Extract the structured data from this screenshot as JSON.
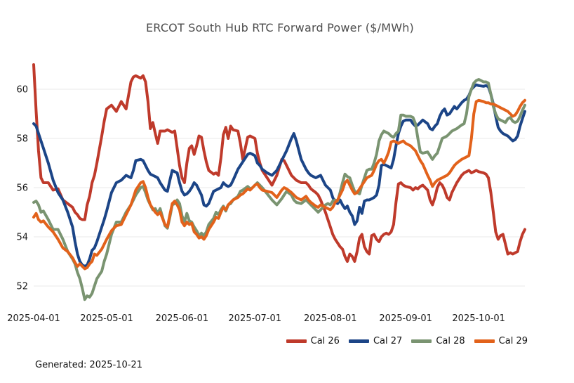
{
  "footer": {
    "generated": "Generated: 2025-10-21"
  },
  "chart_data": {
    "type": "line",
    "title": "ERCOT South Hub RTC Forward Power ($/MWh)",
    "xlabel": "",
    "ylabel": "",
    "grid": true,
    "legend_position": "bottom-right",
    "axis_text_color": "#1a1a1a",
    "grid_color": "#e8e8e8",
    "x_unit": "days since 2025-04-01",
    "xlim_days": [
      0,
      202
    ],
    "ylim": [
      51.2,
      61.3
    ],
    "y_ticks": [
      52,
      54,
      56,
      58,
      60
    ],
    "x_ticks": [
      {
        "day": 0,
        "label": "2025-04-01"
      },
      {
        "day": 30,
        "label": "2025-05-01"
      },
      {
        "day": 61,
        "label": "2025-06-01"
      },
      {
        "day": 91,
        "label": "2025-07-01"
      },
      {
        "day": 122,
        "label": "2025-08-01"
      },
      {
        "day": 153,
        "label": "2025-09-01"
      },
      {
        "day": 183,
        "label": "2025-10-01"
      }
    ],
    "x_days": [
      0,
      1,
      2,
      3,
      4,
      6,
      8,
      10,
      12,
      14,
      16,
      17,
      18,
      19,
      20,
      21,
      22,
      23,
      24,
      25,
      26,
      28,
      29,
      30,
      32,
      34,
      36,
      38,
      40,
      41,
      42,
      44,
      45,
      46,
      47,
      48,
      49,
      50,
      51,
      52,
      54,
      55,
      56,
      57,
      58,
      59,
      60,
      61,
      62,
      63,
      64,
      65,
      66,
      67,
      68,
      69,
      70,
      71,
      72,
      74,
      75,
      76,
      77,
      78,
      79,
      80,
      81,
      82,
      84,
      85,
      86,
      88,
      89,
      90,
      91,
      92,
      93,
      94,
      96,
      98,
      100,
      102,
      103,
      104,
      106,
      107,
      108,
      110,
      112,
      113,
      114,
      116,
      117,
      118,
      120,
      121,
      122,
      123,
      124,
      125,
      126,
      127,
      128,
      129,
      130,
      131,
      132,
      133,
      134,
      135,
      136,
      137,
      138,
      139,
      140,
      141,
      142,
      143,
      144,
      145,
      146,
      147,
      148,
      149,
      150,
      151,
      152,
      153,
      155,
      156,
      157,
      158,
      159,
      160,
      162,
      163,
      164,
      165,
      166,
      167,
      168,
      169,
      170,
      171,
      172,
      173,
      174,
      176,
      177,
      178,
      179,
      180,
      181,
      182,
      183,
      185,
      186,
      187,
      188,
      189,
      190,
      191,
      192,
      193,
      194,
      195,
      196,
      197,
      198,
      199,
      200,
      201,
      202
    ],
    "series": [
      {
        "name": "Cal 26",
        "color": "#bf3a2b",
        "values": [
          61.0,
          59.1,
          57.5,
          56.4,
          56.2,
          56.2,
          55.9,
          55.95,
          55.5,
          55.35,
          55.2,
          55.0,
          54.9,
          54.75,
          54.7,
          54.7,
          55.3,
          55.65,
          56.2,
          56.5,
          57.0,
          58.1,
          58.7,
          59.2,
          59.35,
          59.1,
          59.5,
          59.2,
          60.3,
          60.5,
          60.55,
          60.45,
          60.55,
          60.3,
          59.5,
          58.4,
          58.65,
          58.2,
          57.8,
          58.3,
          58.3,
          58.35,
          58.3,
          58.25,
          58.3,
          57.6,
          56.9,
          56.4,
          56.2,
          57.0,
          57.6,
          57.7,
          57.35,
          57.7,
          58.1,
          58.05,
          57.5,
          57.05,
          56.7,
          56.55,
          56.6,
          56.5,
          57.2,
          58.15,
          58.45,
          58.0,
          58.5,
          58.35,
          58.3,
          57.8,
          57.15,
          58.05,
          58.1,
          58.05,
          58.0,
          57.4,
          57.0,
          56.7,
          56.4,
          56.1,
          56.5,
          57.15,
          57.1,
          56.9,
          56.5,
          56.4,
          56.3,
          56.2,
          56.2,
          56.1,
          55.95,
          55.8,
          55.7,
          55.5,
          55.0,
          54.7,
          54.4,
          54.1,
          53.9,
          53.75,
          53.6,
          53.5,
          53.2,
          53.0,
          53.3,
          53.2,
          53.0,
          53.4,
          53.95,
          54.1,
          53.6,
          53.4,
          53.3,
          54.05,
          54.1,
          53.9,
          53.8,
          54.0,
          54.1,
          54.15,
          54.1,
          54.2,
          54.5,
          55.4,
          56.15,
          56.2,
          56.1,
          56.05,
          56.0,
          55.9,
          56.0,
          55.95,
          56.05,
          56.1,
          55.9,
          55.5,
          55.3,
          55.6,
          56.0,
          56.2,
          56.1,
          55.9,
          55.6,
          55.5,
          55.8,
          56.0,
          56.2,
          56.5,
          56.6,
          56.65,
          56.7,
          56.6,
          56.65,
          56.7,
          56.65,
          56.6,
          56.55,
          56.4,
          55.8,
          55.0,
          54.2,
          53.9,
          54.05,
          54.1,
          53.7,
          53.3,
          53.35,
          53.3,
          53.35,
          53.4,
          53.8,
          54.1,
          54.3
        ]
      },
      {
        "name": "Cal 27",
        "color": "#1c4587",
        "values": [
          58.6,
          58.5,
          58.2,
          57.9,
          57.6,
          57.0,
          56.3,
          55.8,
          55.5,
          55.0,
          54.4,
          53.8,
          53.3,
          53.0,
          52.85,
          52.8,
          52.85,
          53.1,
          53.45,
          53.55,
          53.8,
          54.4,
          54.7,
          55.05,
          55.8,
          56.2,
          56.3,
          56.5,
          56.4,
          56.7,
          57.1,
          57.15,
          57.1,
          56.9,
          56.7,
          56.55,
          56.5,
          56.45,
          56.4,
          56.2,
          55.9,
          55.85,
          56.3,
          56.7,
          56.65,
          56.6,
          56.2,
          55.85,
          55.7,
          55.75,
          55.85,
          56.0,
          56.2,
          56.1,
          55.9,
          55.7,
          55.3,
          55.25,
          55.35,
          55.85,
          55.9,
          55.95,
          56.0,
          56.2,
          56.1,
          56.05,
          56.1,
          56.3,
          56.75,
          56.9,
          57.05,
          57.35,
          57.4,
          57.35,
          57.3,
          57.0,
          56.9,
          56.75,
          56.6,
          56.5,
          56.7,
          57.1,
          57.3,
          57.5,
          58.0,
          58.2,
          57.9,
          57.15,
          56.75,
          56.6,
          56.5,
          56.4,
          56.45,
          56.5,
          56.1,
          56.0,
          55.9,
          55.6,
          55.4,
          55.35,
          55.5,
          55.3,
          55.15,
          55.25,
          55.0,
          54.85,
          54.5,
          54.65,
          55.2,
          54.95,
          55.45,
          55.5,
          55.5,
          55.55,
          55.6,
          55.7,
          56.1,
          56.9,
          56.95,
          56.9,
          56.85,
          56.8,
          57.15,
          57.7,
          58.2,
          58.5,
          58.7,
          58.75,
          58.75,
          58.6,
          58.5,
          58.55,
          58.65,
          58.75,
          58.6,
          58.4,
          58.35,
          58.5,
          58.6,
          58.9,
          59.1,
          59.2,
          58.95,
          59.0,
          59.15,
          59.3,
          59.2,
          59.45,
          59.55,
          59.6,
          59.75,
          60.0,
          60.1,
          60.18,
          60.15,
          60.12,
          60.15,
          60.1,
          59.8,
          59.4,
          58.9,
          58.45,
          58.3,
          58.2,
          58.15,
          58.1,
          58.0,
          57.9,
          57.95,
          58.1,
          58.5,
          58.8,
          59.1
        ]
      },
      {
        "name": "Cal 28",
        "color": "#7a9471",
        "values": [
          55.4,
          55.45,
          55.3,
          55.0,
          55.05,
          54.7,
          54.3,
          54.3,
          53.9,
          53.4,
          53.1,
          52.9,
          52.55,
          52.3,
          51.9,
          51.45,
          51.6,
          51.55,
          51.7,
          52.0,
          52.3,
          52.6,
          53.0,
          53.3,
          54.1,
          54.6,
          54.6,
          55.0,
          55.3,
          55.5,
          55.7,
          56.0,
          56.05,
          55.8,
          55.5,
          55.3,
          55.1,
          55.15,
          54.95,
          55.15,
          54.45,
          54.35,
          54.8,
          55.3,
          55.35,
          55.5,
          55.35,
          54.85,
          54.6,
          54.95,
          54.65,
          54.6,
          54.4,
          54.25,
          54.05,
          54.15,
          54.05,
          54.2,
          54.5,
          54.75,
          55.0,
          54.9,
          55.1,
          55.25,
          55.05,
          55.3,
          55.35,
          55.5,
          55.65,
          55.85,
          55.9,
          56.05,
          55.95,
          56.0,
          56.1,
          56.2,
          56.1,
          56.0,
          55.75,
          55.5,
          55.3,
          55.55,
          55.7,
          55.85,
          55.7,
          55.5,
          55.4,
          55.35,
          55.5,
          55.4,
          55.3,
          55.1,
          55.0,
          55.1,
          55.3,
          55.35,
          55.3,
          55.45,
          55.5,
          55.45,
          55.8,
          56.2,
          56.55,
          56.45,
          56.4,
          56.1,
          55.85,
          55.8,
          55.75,
          56.1,
          56.4,
          56.7,
          56.75,
          56.75,
          57.0,
          57.35,
          57.9,
          58.15,
          58.3,
          58.25,
          58.2,
          58.1,
          58.05,
          58.2,
          58.3,
          58.95,
          58.95,
          58.9,
          58.9,
          58.85,
          58.6,
          58.0,
          57.45,
          57.4,
          57.45,
          57.3,
          57.15,
          57.3,
          57.4,
          57.7,
          58.0,
          58.05,
          58.1,
          58.2,
          58.3,
          58.35,
          58.4,
          58.55,
          58.6,
          59.0,
          59.7,
          60.0,
          60.25,
          60.35,
          60.4,
          60.3,
          60.3,
          60.25,
          59.8,
          59.3,
          59.0,
          58.8,
          58.75,
          58.7,
          58.65,
          58.8,
          58.85,
          58.7,
          58.65,
          58.7,
          58.9,
          59.15,
          59.35
        ]
      },
      {
        "name": "Cal 29",
        "color": "#e2621b",
        "values": [
          54.8,
          54.95,
          54.7,
          54.6,
          54.65,
          54.4,
          54.2,
          53.9,
          53.55,
          53.4,
          53.15,
          52.95,
          52.8,
          52.9,
          52.8,
          52.7,
          52.75,
          52.9,
          53.0,
          53.3,
          53.25,
          53.5,
          53.7,
          53.9,
          54.25,
          54.45,
          54.5,
          54.9,
          55.3,
          55.6,
          55.9,
          56.2,
          56.25,
          56.0,
          55.6,
          55.3,
          55.15,
          55.0,
          54.9,
          55.0,
          54.5,
          54.4,
          54.9,
          55.35,
          55.45,
          55.3,
          55.1,
          54.6,
          54.45,
          54.6,
          54.5,
          54.55,
          54.2,
          54.1,
          53.95,
          54.0,
          53.9,
          54.05,
          54.3,
          54.6,
          54.8,
          54.75,
          55.0,
          55.2,
          55.1,
          55.3,
          55.4,
          55.5,
          55.6,
          55.7,
          55.75,
          55.95,
          55.9,
          56.0,
          56.1,
          56.15,
          56.0,
          55.9,
          55.85,
          55.8,
          55.6,
          55.9,
          56.0,
          55.95,
          55.8,
          55.7,
          55.6,
          55.5,
          55.65,
          55.5,
          55.4,
          55.25,
          55.2,
          55.3,
          55.2,
          55.15,
          55.1,
          55.2,
          55.4,
          55.5,
          55.7,
          55.9,
          56.2,
          56.3,
          56.1,
          55.9,
          55.75,
          55.8,
          55.95,
          56.1,
          56.25,
          56.4,
          56.45,
          56.5,
          56.7,
          56.95,
          57.1,
          57.15,
          57.0,
          57.2,
          57.45,
          57.85,
          57.9,
          57.85,
          57.8,
          57.85,
          57.9,
          57.8,
          57.7,
          57.6,
          57.5,
          57.3,
          57.1,
          56.95,
          56.5,
          56.3,
          56.05,
          56.2,
          56.3,
          56.35,
          56.4,
          56.45,
          56.5,
          56.6,
          56.75,
          56.9,
          57.0,
          57.15,
          57.2,
          57.25,
          57.3,
          58.0,
          59.0,
          59.5,
          59.55,
          59.5,
          59.45,
          59.45,
          59.4,
          59.4,
          59.35,
          59.3,
          59.25,
          59.2,
          59.15,
          59.1,
          59.0,
          58.9,
          58.95,
          59.1,
          59.3,
          59.45,
          59.55
        ]
      }
    ]
  }
}
